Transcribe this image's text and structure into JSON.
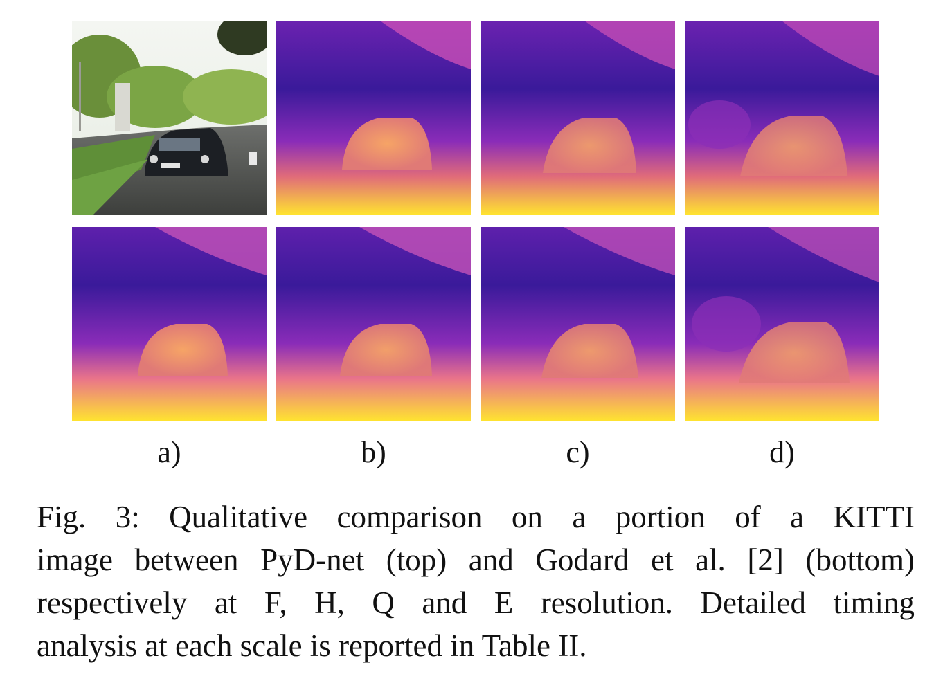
{
  "figure": {
    "columns": [
      {
        "label": "a)"
      },
      {
        "label": "b)"
      },
      {
        "label": "c)"
      },
      {
        "label": "d)"
      }
    ],
    "colormap": {
      "low": "#2a1a8c",
      "mid": "#b93fbf",
      "high": "#f5a94a",
      "top": "#ffe535"
    },
    "caption_lines": [
      "Fig. 3: Qualitative comparison on a portion of a KITTI",
      "image between PyD-net (top) and Godard et al. [2] (bottom)",
      "respectively at F, H, Q and E resolution. Detailed timing",
      "analysis at each scale is reported in Table II."
    ]
  }
}
